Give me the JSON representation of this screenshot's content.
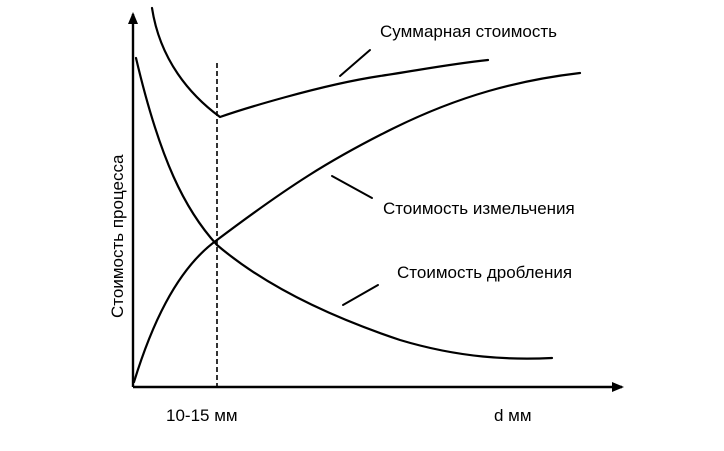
{
  "chart_data": {
    "type": "line",
    "title": "",
    "xlabel": "d мм",
    "ylabel": "Стоимость процесса",
    "marker": {
      "label": "10-15 мм"
    },
    "grid": false,
    "legend": "inline-annotations",
    "series": [
      {
        "name": "Суммарная стоимость"
      },
      {
        "name": "Стоимость измельчения"
      },
      {
        "name": "Стоимость дробления"
      }
    ]
  }
}
